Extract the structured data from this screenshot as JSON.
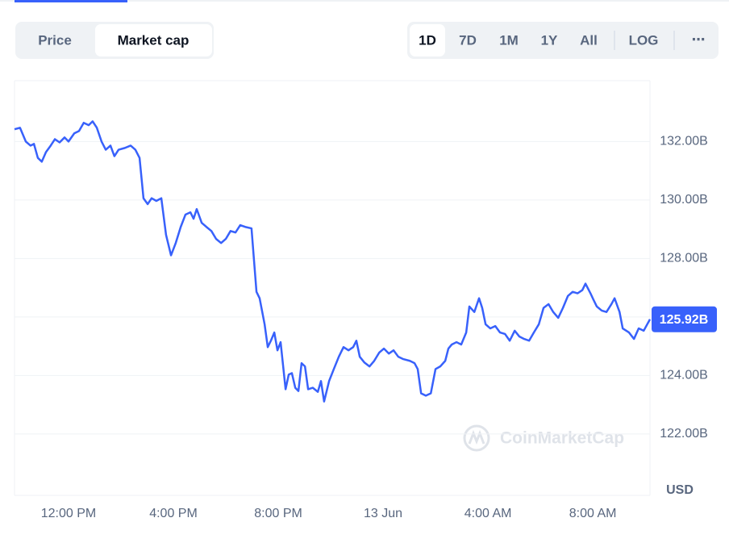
{
  "controls": {
    "views": [
      "Price",
      "Market cap"
    ],
    "ranges": [
      "1D",
      "7D",
      "1M",
      "1Y",
      "All"
    ],
    "log": "LOG",
    "more": "⋯"
  },
  "watermark": "CoinMarketCap",
  "chart_data": {
    "type": "line",
    "color": "#3861fb",
    "currency": "USD",
    "x": [
      9.94,
      10.15,
      10.37,
      10.55,
      10.68,
      10.83,
      10.98,
      11.14,
      11.32,
      11.48,
      11.66,
      11.85,
      12.0,
      12.22,
      12.4,
      12.58,
      12.77,
      12.92,
      13.08,
      13.26,
      13.42,
      13.6,
      13.75,
      13.91,
      14.15,
      14.37,
      14.55,
      14.71,
      14.86,
      15.02,
      15.17,
      15.35,
      15.54,
      15.72,
      15.91,
      16.09,
      16.28,
      16.46,
      16.65,
      16.77,
      16.89,
      17.08,
      17.26,
      17.45,
      17.63,
      17.82,
      18.0,
      18.18,
      18.37,
      18.55,
      18.74,
      18.98,
      19.17,
      19.29,
      19.48,
      19.6,
      19.72,
      19.85,
      19.97,
      20.09,
      20.28,
      20.4,
      20.52,
      20.65,
      20.77,
      20.89,
      21.02,
      21.14,
      21.32,
      21.51,
      21.63,
      21.75,
      21.94,
      22.12,
      22.31,
      22.49,
      22.68,
      22.86,
      22.98,
      23.11,
      23.29,
      23.48,
      23.66,
      23.85,
      24.03,
      24.22,
      24.4,
      24.58,
      24.77,
      25.02,
      25.2,
      25.32,
      25.45,
      25.63,
      25.82,
      26.0,
      26.18,
      26.37,
      26.49,
      26.62,
      26.8,
      26.98,
      27.17,
      27.29,
      27.48,
      27.66,
      27.78,
      27.91,
      28.09,
      28.28,
      28.46,
      28.65,
      28.83,
      29.02,
      29.2,
      29.38,
      29.57,
      29.75,
      29.94,
      30.12,
      30.31,
      30.49,
      30.68,
      30.86,
      31.05,
      31.23,
      31.42,
      31.6,
      31.72,
      31.91,
      32.03,
      32.15,
      32.34,
      32.52,
      32.71,
      32.83,
      33.02,
      33.14,
      33.38,
      33.57,
      33.75,
      33.94,
      34.18
    ],
    "values": [
      132.42,
      132.47,
      132.0,
      131.86,
      131.92,
      131.44,
      131.31,
      131.64,
      131.86,
      132.08,
      131.97,
      132.14,
      132.0,
      132.28,
      132.36,
      132.64,
      132.56,
      132.69,
      132.47,
      132.0,
      131.72,
      131.86,
      131.5,
      131.72,
      131.78,
      131.86,
      131.72,
      131.44,
      130.06,
      129.86,
      130.06,
      129.97,
      130.06,
      128.81,
      128.11,
      128.53,
      129.08,
      129.5,
      129.58,
      129.36,
      129.69,
      129.22,
      129.08,
      128.94,
      128.67,
      128.53,
      128.67,
      128.94,
      128.89,
      129.14,
      129.08,
      129.03,
      126.86,
      126.64,
      125.75,
      124.97,
      125.19,
      125.47,
      124.86,
      125.14,
      123.53,
      124.03,
      124.08,
      123.58,
      123.47,
      124.42,
      124.31,
      123.53,
      123.58,
      123.44,
      123.81,
      123.11,
      123.81,
      124.22,
      124.64,
      124.97,
      124.86,
      124.97,
      125.19,
      124.64,
      124.44,
      124.31,
      124.5,
      124.78,
      124.92,
      124.75,
      124.86,
      124.64,
      124.56,
      124.5,
      124.42,
      124.22,
      123.39,
      123.31,
      123.39,
      124.22,
      124.31,
      124.5,
      124.92,
      125.06,
      125.14,
      125.06,
      125.47,
      126.36,
      126.17,
      126.64,
      126.31,
      125.75,
      125.61,
      125.69,
      125.47,
      125.42,
      125.19,
      125.53,
      125.33,
      125.25,
      125.19,
      125.47,
      125.75,
      126.31,
      126.44,
      126.17,
      125.97,
      126.31,
      126.72,
      126.86,
      126.81,
      126.92,
      127.14,
      126.81,
      126.58,
      126.36,
      126.22,
      126.17,
      126.44,
      126.64,
      126.17,
      125.61,
      125.47,
      125.25,
      125.61,
      125.53,
      125.92
    ],
    "current": {
      "value": 125.92,
      "label": "125.92B"
    },
    "xlim": [
      9.94,
      34.18
    ],
    "ylim": [
      119.9,
      134.08
    ],
    "xticks": [
      {
        "value": 12,
        "label": "12:00 PM"
      },
      {
        "value": 16,
        "label": "4:00 PM"
      },
      {
        "value": 20,
        "label": "8:00 PM"
      },
      {
        "value": 24,
        "label": "13 Jun"
      },
      {
        "value": 28,
        "label": "4:00 AM"
      },
      {
        "value": 32,
        "label": "8:00 AM"
      }
    ],
    "yticks": [
      {
        "value": 122,
        "label": "122.00B"
      },
      {
        "value": 124,
        "label": "124.00B"
      },
      {
        "value": 126,
        "label": "126.00B"
      },
      {
        "value": 128,
        "label": "128.00B"
      },
      {
        "value": 130,
        "label": "130.00B"
      },
      {
        "value": 132,
        "label": "132.00B"
      }
    ],
    "grid": true
  }
}
